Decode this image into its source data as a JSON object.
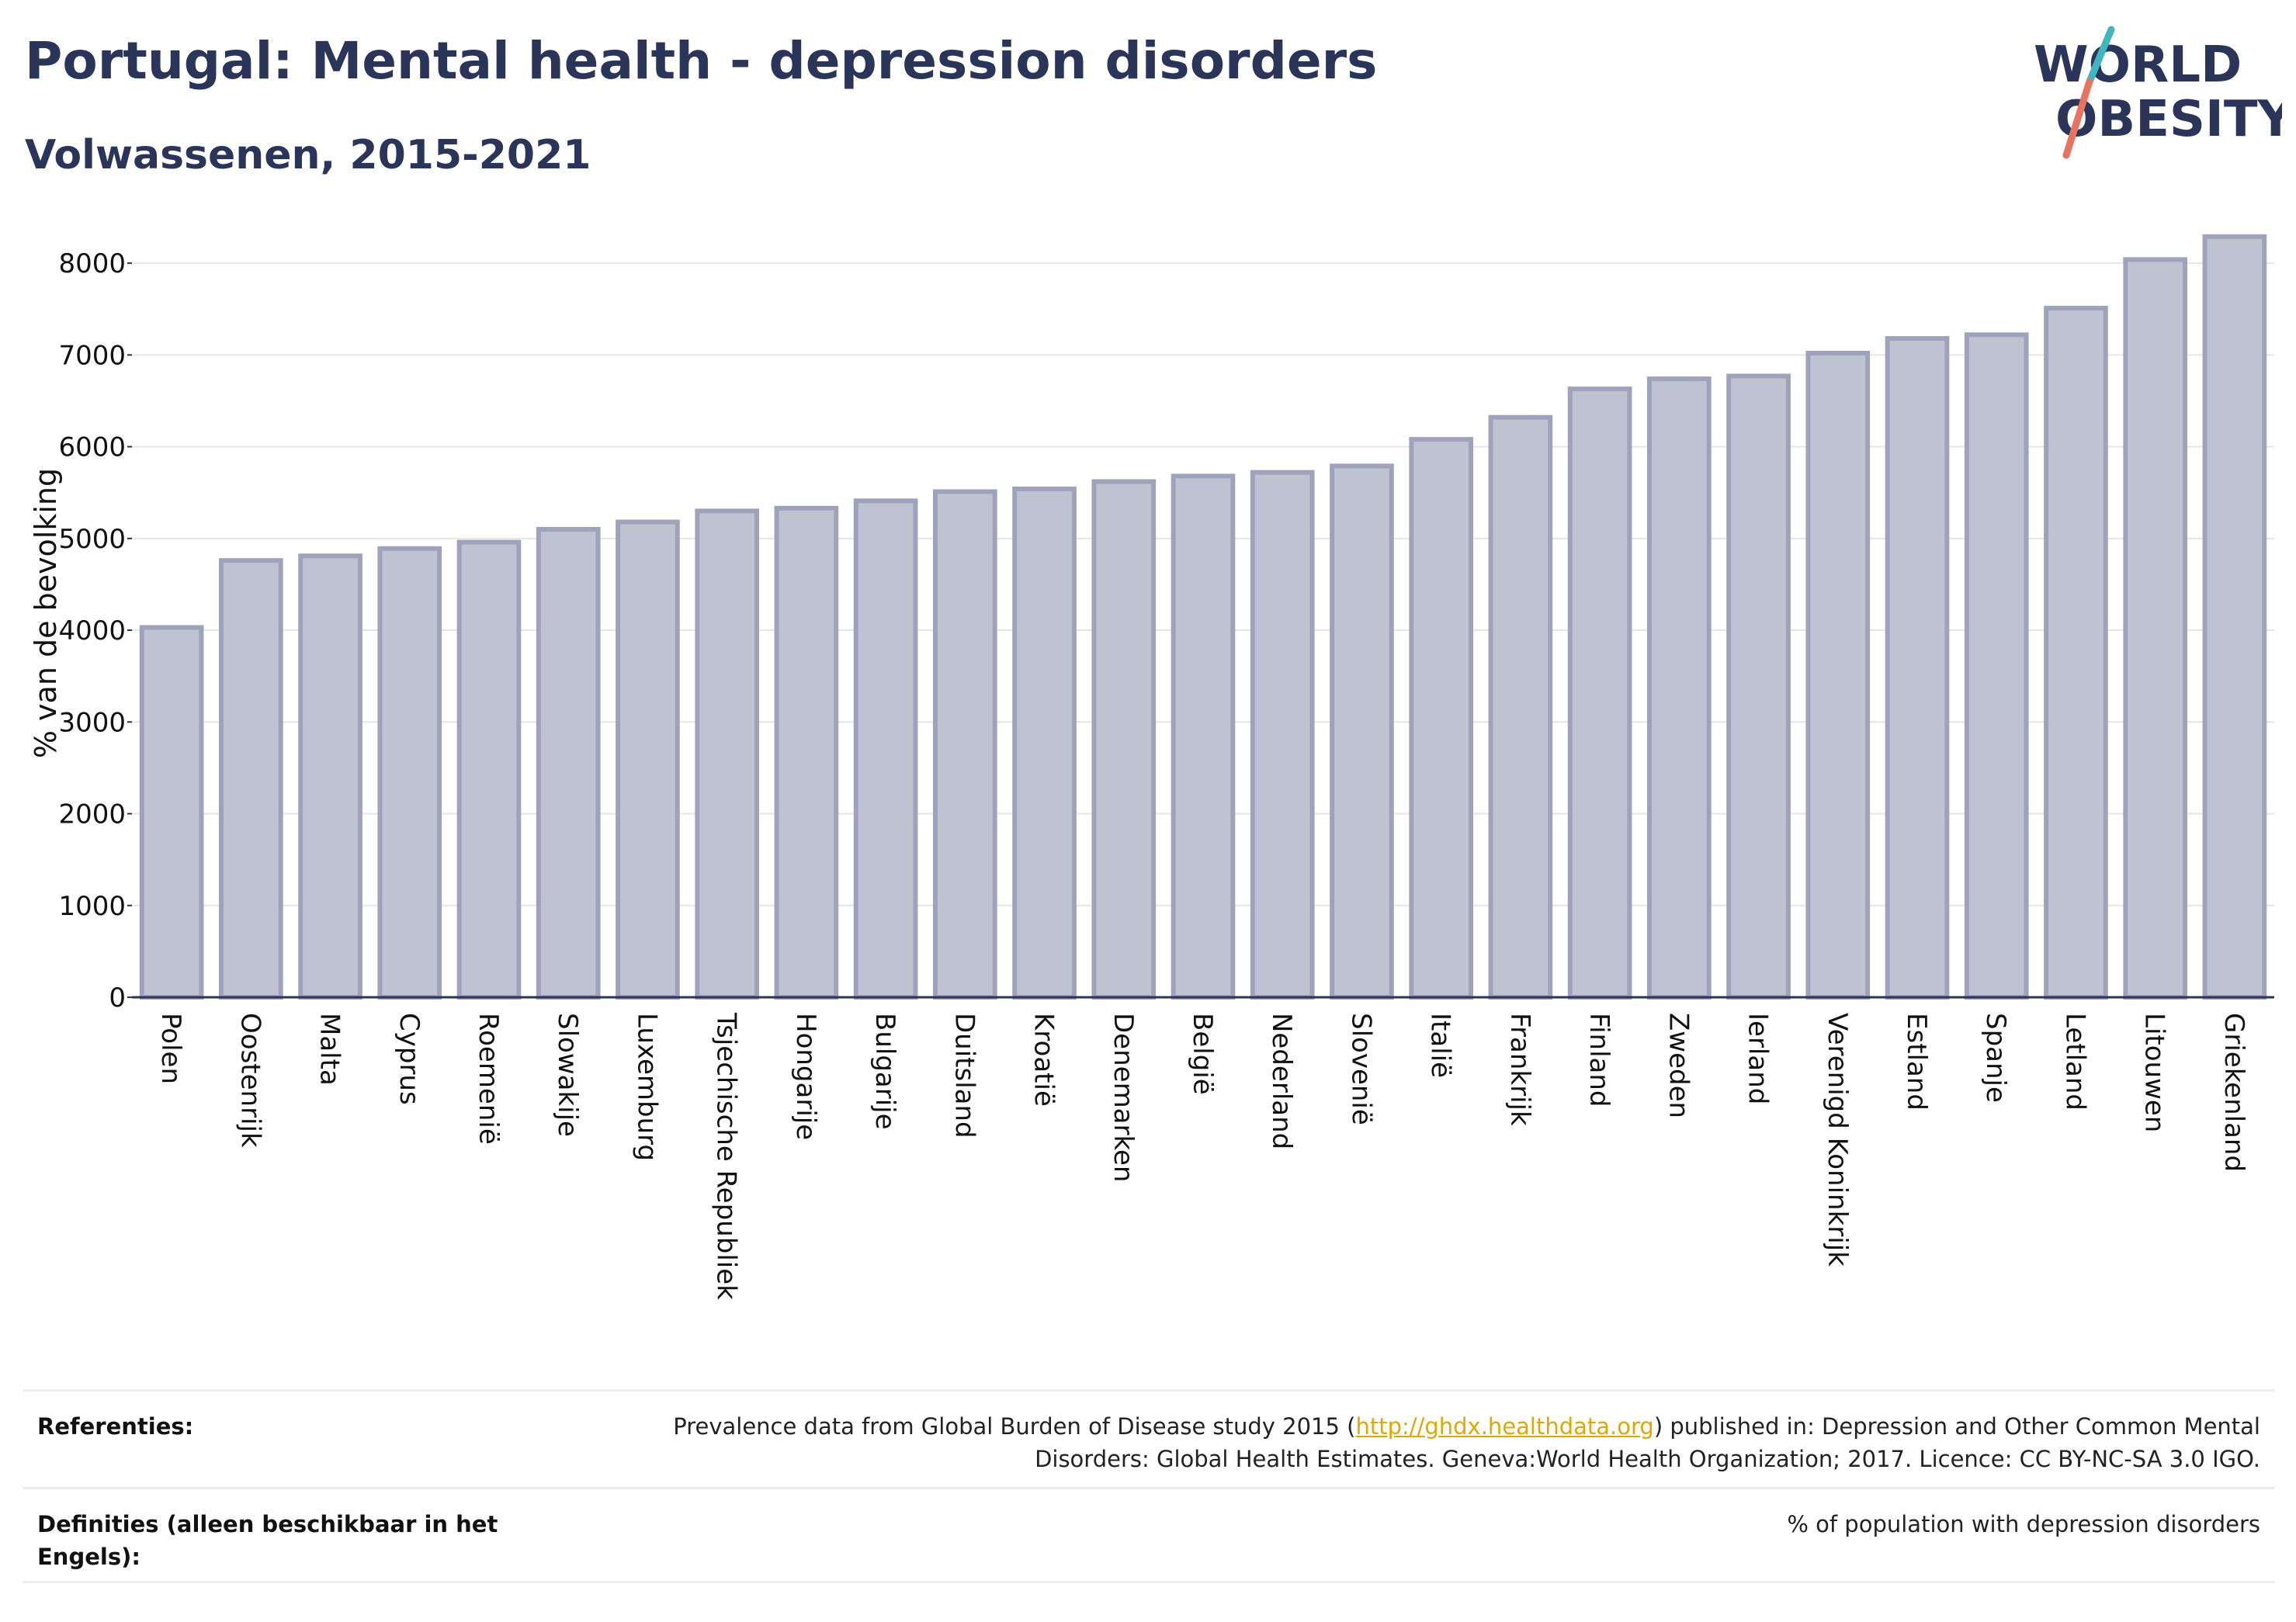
{
  "title": "Portugal: Mental health - depression disorders",
  "subtitle": "Volwassenen, 2015-2021",
  "logo": {
    "line1": "WORLD",
    "line2": "OBESITY",
    "text_color": "#2b355a",
    "slash_colors": [
      "#3fb6c0",
      "#e8735e"
    ]
  },
  "colors": {
    "bar_fill": "#bfc2d0",
    "bar_stroke": "#9ea3bb",
    "text": "#2b355a",
    "grid": "#e6e6e6",
    "link": "#e0a800"
  },
  "chart_data": {
    "type": "bar",
    "title": "",
    "xlabel": "",
    "ylabel": "% van de bevolking",
    "ylim": [
      0,
      8500
    ],
    "yticks": [
      0,
      1000,
      2000,
      3000,
      4000,
      5000,
      6000,
      7000,
      8000
    ],
    "grid": true,
    "categories": [
      "Polen",
      "Oostenrijk",
      "Malta",
      "Cyprus",
      "Roemenië",
      "Slowakije",
      "Luxemburg",
      "Tsjechische Republiek",
      "Hongarije",
      "Bulgarije",
      "Duitsland",
      "Kroatië",
      "Denemarken",
      "België",
      "Nederland",
      "Slovenië",
      "Italië",
      "Frankrijk",
      "Finland",
      "Zweden",
      "Ierland",
      "Verenigd Koninkrijk",
      "Estland",
      "Spanje",
      "Letland",
      "Litouwen",
      "Griekenland"
    ],
    "values": [
      4030,
      4760,
      4810,
      4890,
      4960,
      5100,
      5180,
      5300,
      5330,
      5410,
      5510,
      5540,
      5620,
      5680,
      5720,
      5790,
      6080,
      6320,
      6630,
      6740,
      6770,
      7020,
      7180,
      7220,
      7510,
      8040,
      8290
    ]
  },
  "references": {
    "ref_label": "Referenties:",
    "ref_text_before": "Prevalence data from Global Burden of Disease study 2015 (",
    "ref_link": "http://ghdx.healthdata.org",
    "ref_text_after": ") published in: Depression and Other Common Mental Disorders: Global Health Estimates. Geneva:World Health Organization; 2017. Licence: CC BY-NC-SA 3.0 IGO.",
    "def_label": "Definities (alleen beschikbaar in het Engels):",
    "def_text": "% of population with depression disorders"
  }
}
